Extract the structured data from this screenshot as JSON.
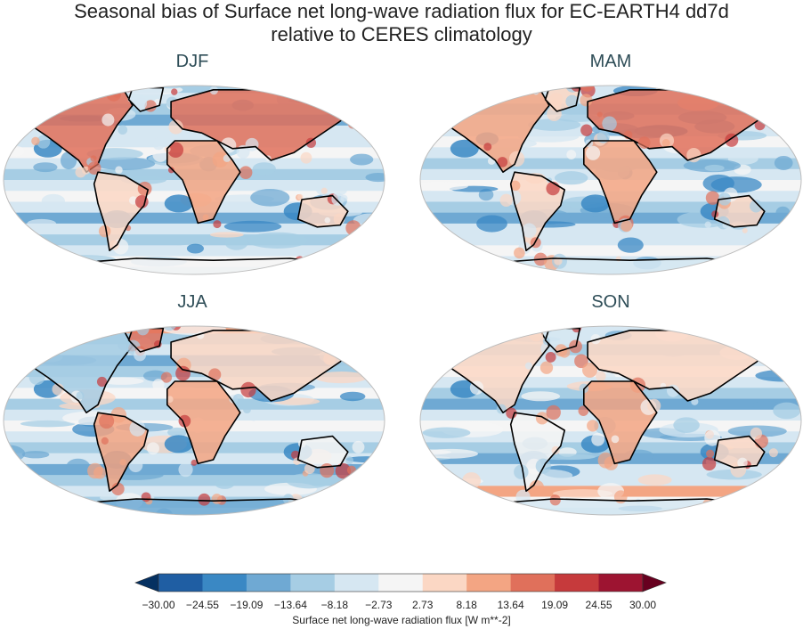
{
  "figure": {
    "title_line1": "Seasonal bias of Surface net long-wave radiation flux for EC-EARTH4 dd7d",
    "title_line2": "relative to CERES climatology"
  },
  "panels": [
    {
      "label": "DJF",
      "theme": "winter"
    },
    {
      "label": "MAM",
      "theme": "spring"
    },
    {
      "label": "JJA",
      "theme": "summer"
    },
    {
      "label": "SON",
      "theme": "autumn"
    }
  ],
  "colorbar": {
    "label": "Surface net long-wave radiation flux [W m**-2]",
    "ticks": [
      "−30.00",
      "−24.55",
      "−19.09",
      "−13.64",
      "−8.18",
      "−2.73",
      "2.73",
      "8.18",
      "13.64",
      "19.09",
      "24.55",
      "30.00"
    ],
    "colors": [
      "#053061",
      "#1f5ea3",
      "#3a88c4",
      "#6fa9d3",
      "#a6cde4",
      "#d6e7f2",
      "#f5f5f5",
      "#fbd7c4",
      "#f3a583",
      "#e0705b",
      "#c63a3c",
      "#9d1431",
      "#67001f"
    ]
  }
}
